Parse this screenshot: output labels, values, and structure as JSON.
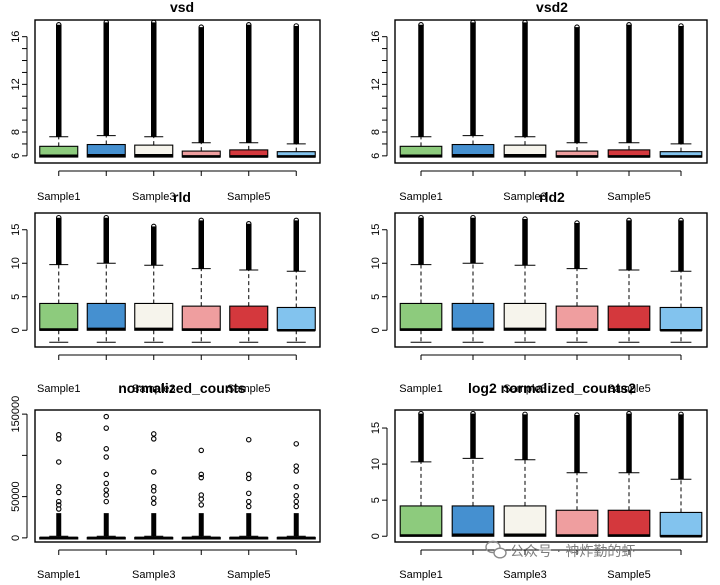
{
  "colors": {
    "fills": [
      "#8dcb7d",
      "#4590d0",
      "#f6f4ec",
      "#ef9e9f",
      "#d4383d",
      "#82c3ee"
    ],
    "outlier": "#000000"
  },
  "watermark": {
    "text": "公众号 · 神炸勤的虾",
    "icon": "wechat-icon"
  },
  "chart_data": [
    {
      "type": "box",
      "title": "vsd",
      "xtick_labels": [
        "Sample1",
        "Sample3",
        "Sample5"
      ],
      "xtick_positions": [
        1,
        3,
        5
      ],
      "ylim": [
        5.4,
        17.4
      ],
      "yticks": [
        6,
        8,
        12,
        16
      ],
      "ytick_labels": [
        "6",
        "8",
        "12",
        "16"
      ],
      "ygrid_minor": [
        7,
        9,
        10,
        11,
        13,
        14,
        15
      ],
      "samples": [
        {
          "q1": 5.9,
          "median": 6.0,
          "q3": 6.8,
          "whisker_low": 5.9,
          "whisker_high": 7.6,
          "outlier_max": 17.0
        },
        {
          "q1": 5.9,
          "median": 6.05,
          "q3": 6.95,
          "whisker_low": 5.9,
          "whisker_high": 7.7,
          "outlier_max": 17.2
        },
        {
          "q1": 5.9,
          "median": 6.05,
          "q3": 6.9,
          "whisker_low": 5.9,
          "whisker_high": 7.6,
          "outlier_max": 17.2
        },
        {
          "q1": 5.9,
          "median": 5.95,
          "q3": 6.4,
          "whisker_low": 5.9,
          "whisker_high": 7.1,
          "outlier_max": 16.8
        },
        {
          "q1": 5.9,
          "median": 5.95,
          "q3": 6.5,
          "whisker_low": 5.9,
          "whisker_high": 7.1,
          "outlier_max": 17.0
        },
        {
          "q1": 5.9,
          "median": 5.95,
          "q3": 6.35,
          "whisker_low": 5.9,
          "whisker_high": 7.0,
          "outlier_max": 16.9
        }
      ]
    },
    {
      "type": "box",
      "title": "vsd2",
      "xtick_labels": [
        "Sample1",
        "Sample3",
        "Sample5"
      ],
      "xtick_positions": [
        1,
        3,
        5
      ],
      "ylim": [
        5.4,
        17.4
      ],
      "yticks": [
        6,
        8,
        12,
        16
      ],
      "ytick_labels": [
        "6",
        "8",
        "12",
        "16"
      ],
      "ygrid_minor": [
        7,
        9,
        10,
        11,
        13,
        14,
        15
      ],
      "samples": [
        {
          "q1": 5.9,
          "median": 6.0,
          "q3": 6.8,
          "whisker_low": 5.9,
          "whisker_high": 7.6,
          "outlier_max": 17.0
        },
        {
          "q1": 5.9,
          "median": 6.05,
          "q3": 6.95,
          "whisker_low": 5.9,
          "whisker_high": 7.7,
          "outlier_max": 17.2
        },
        {
          "q1": 5.9,
          "median": 6.05,
          "q3": 6.9,
          "whisker_low": 5.9,
          "whisker_high": 7.6,
          "outlier_max": 17.2
        },
        {
          "q1": 5.9,
          "median": 5.95,
          "q3": 6.4,
          "whisker_low": 5.9,
          "whisker_high": 7.1,
          "outlier_max": 16.8
        },
        {
          "q1": 5.9,
          "median": 5.95,
          "q3": 6.5,
          "whisker_low": 5.9,
          "whisker_high": 7.1,
          "outlier_max": 17.0
        },
        {
          "q1": 5.9,
          "median": 5.95,
          "q3": 6.35,
          "whisker_low": 5.9,
          "whisker_high": 7.0,
          "outlier_max": 16.9
        }
      ]
    },
    {
      "type": "box",
      "title": "rld",
      "xtick_labels": [
        "Sample1",
        "Sample3",
        "Sample5"
      ],
      "xtick_positions": [
        1,
        3,
        5
      ],
      "ylim": [
        -2.5,
        17.5
      ],
      "yticks": [
        0,
        5,
        10,
        15
      ],
      "ytick_labels": [
        "0",
        "5",
        "10",
        "15"
      ],
      "ygrid_minor": [],
      "samples": [
        {
          "q1": 0.0,
          "median": 0.1,
          "q3": 4.0,
          "whisker_low": -1.8,
          "whisker_high": 9.8,
          "outlier_max": 16.8
        },
        {
          "q1": 0.0,
          "median": 0.2,
          "q3": 4.0,
          "whisker_low": -1.8,
          "whisker_high": 10.0,
          "outlier_max": 16.8
        },
        {
          "q1": 0.0,
          "median": 0.2,
          "q3": 4.0,
          "whisker_low": -1.8,
          "whisker_high": 9.7,
          "outlier_max": 15.5
        },
        {
          "q1": 0.0,
          "median": 0.1,
          "q3": 3.6,
          "whisker_low": -1.8,
          "whisker_high": 9.2,
          "outlier_max": 16.4
        },
        {
          "q1": 0.0,
          "median": 0.1,
          "q3": 3.6,
          "whisker_low": -1.8,
          "whisker_high": 9.0,
          "outlier_max": 15.9
        },
        {
          "q1": 0.0,
          "median": 0.0,
          "q3": 3.4,
          "whisker_low": -1.8,
          "whisker_high": 8.8,
          "outlier_max": 16.4
        }
      ]
    },
    {
      "type": "box",
      "title": "rld2",
      "xtick_labels": [
        "Sample1",
        "Sample3",
        "Sample5"
      ],
      "xtick_positions": [
        1,
        3,
        5
      ],
      "ylim": [
        -2.5,
        17.5
      ],
      "yticks": [
        0,
        5,
        10,
        15
      ],
      "ytick_labels": [
        "0",
        "5",
        "10",
        "15"
      ],
      "ygrid_minor": [],
      "samples": [
        {
          "q1": 0.0,
          "median": 0.1,
          "q3": 4.0,
          "whisker_low": -1.8,
          "whisker_high": 9.8,
          "outlier_max": 16.8
        },
        {
          "q1": 0.0,
          "median": 0.2,
          "q3": 4.0,
          "whisker_low": -1.8,
          "whisker_high": 10.0,
          "outlier_max": 16.8
        },
        {
          "q1": 0.0,
          "median": 0.2,
          "q3": 4.0,
          "whisker_low": -1.8,
          "whisker_high": 9.7,
          "outlier_max": 16.6
        },
        {
          "q1": 0.0,
          "median": 0.1,
          "q3": 3.6,
          "whisker_low": -1.8,
          "whisker_high": 9.2,
          "outlier_max": 16.0
        },
        {
          "q1": 0.0,
          "median": 0.1,
          "q3": 3.6,
          "whisker_low": -1.8,
          "whisker_high": 9.0,
          "outlier_max": 16.4
        },
        {
          "q1": 0.0,
          "median": 0.0,
          "q3": 3.4,
          "whisker_low": -1.8,
          "whisker_high": 8.8,
          "outlier_max": 16.4
        }
      ]
    },
    {
      "type": "box",
      "title": "normalized_counts",
      "xtick_labels": [
        "Sample1",
        "Sample3",
        "Sample5"
      ],
      "xtick_positions": [
        1,
        3,
        5
      ],
      "ylim": [
        -5000,
        155000
      ],
      "yticks": [
        0,
        50000,
        150000
      ],
      "ytick_labels": [
        "0",
        "50000",
        "150000"
      ],
      "ygrid_minor": [
        100000
      ],
      "samples": [
        {
          "q1": 0,
          "median": 0,
          "q3": 500,
          "whisker_low": 0,
          "whisker_high": 2000,
          "outlier_max": 125000,
          "outliers": [
            125000,
            120000,
            92000,
            62000,
            55000,
            44000,
            40000,
            35000
          ]
        },
        {
          "q1": 0,
          "median": 0,
          "q3": 500,
          "whisker_low": 0,
          "whisker_high": 2000,
          "outlier_max": 147000,
          "outliers": [
            147000,
            133000,
            108000,
            98000,
            77000,
            66000,
            58000,
            52000,
            44000
          ]
        },
        {
          "q1": 0,
          "median": 0,
          "q3": 500,
          "whisker_low": 0,
          "whisker_high": 2000,
          "outlier_max": 126000,
          "outliers": [
            126000,
            120000,
            80000,
            62000,
            57000,
            48000,
            42000
          ]
        },
        {
          "q1": 0,
          "median": 0,
          "q3": 500,
          "whisker_low": 0,
          "whisker_high": 2000,
          "outlier_max": 106000,
          "outliers": [
            106000,
            77000,
            73000,
            52000,
            47000,
            40000
          ]
        },
        {
          "q1": 0,
          "median": 0,
          "q3": 500,
          "whisker_low": 0,
          "whisker_high": 2000,
          "outlier_max": 119000,
          "outliers": [
            119000,
            77000,
            72000,
            54000,
            44000,
            38000
          ]
        },
        {
          "q1": 0,
          "median": 0,
          "q3": 500,
          "whisker_low": 0,
          "whisker_high": 2000,
          "outlier_max": 114000,
          "outliers": [
            114000,
            87000,
            81000,
            62000,
            51000,
            44000,
            38000
          ]
        }
      ]
    },
    {
      "type": "box",
      "title": "log2 normalized_counts2",
      "xtick_labels": [
        "Sample1",
        "Sample3",
        "Sample5"
      ],
      "xtick_positions": [
        1,
        3,
        5
      ],
      "ylim": [
        -0.8,
        17.5
      ],
      "yticks": [
        0,
        5,
        10,
        15
      ],
      "ytick_labels": [
        "0",
        "5",
        "10",
        "15"
      ],
      "ygrid_minor": [],
      "samples": [
        {
          "q1": 0.0,
          "median": 0.1,
          "q3": 4.2,
          "whisker_low": 0.0,
          "whisker_high": 10.3,
          "outlier_max": 17.0
        },
        {
          "q1": 0.0,
          "median": 0.2,
          "q3": 4.2,
          "whisker_low": 0.0,
          "whisker_high": 10.8,
          "outlier_max": 17.0
        },
        {
          "q1": 0.0,
          "median": 0.2,
          "q3": 4.2,
          "whisker_low": 0.0,
          "whisker_high": 10.6,
          "outlier_max": 16.9
        },
        {
          "q1": 0.0,
          "median": 0.1,
          "q3": 3.6,
          "whisker_low": 0.0,
          "whisker_high": 8.8,
          "outlier_max": 16.8
        },
        {
          "q1": 0.0,
          "median": 0.1,
          "q3": 3.6,
          "whisker_low": 0.0,
          "whisker_high": 8.8,
          "outlier_max": 17.0
        },
        {
          "q1": 0.0,
          "median": 0.0,
          "q3": 3.3,
          "whisker_low": 0.0,
          "whisker_high": 7.9,
          "outlier_max": 16.9
        }
      ]
    }
  ]
}
